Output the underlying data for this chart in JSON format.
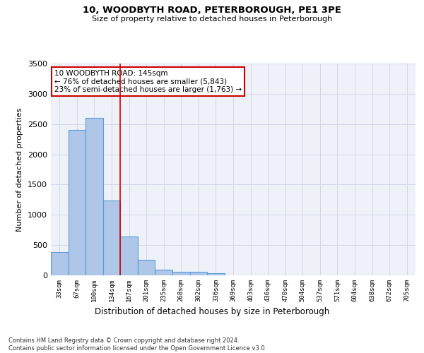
{
  "title1": "10, WOODBYTH ROAD, PETERBOROUGH, PE1 3PE",
  "title2": "Size of property relative to detached houses in Peterborough",
  "xlabel": "Distribution of detached houses by size in Peterborough",
  "ylabel": "Number of detached properties",
  "categories": [
    "33sqm",
    "67sqm",
    "100sqm",
    "134sqm",
    "167sqm",
    "201sqm",
    "235sqm",
    "268sqm",
    "302sqm",
    "336sqm",
    "369sqm",
    "403sqm",
    "436sqm",
    "470sqm",
    "504sqm",
    "537sqm",
    "571sqm",
    "604sqm",
    "638sqm",
    "672sqm",
    "705sqm"
  ],
  "values": [
    390,
    2400,
    2600,
    1240,
    640,
    255,
    90,
    55,
    55,
    40,
    0,
    0,
    0,
    0,
    0,
    0,
    0,
    0,
    0,
    0,
    0
  ],
  "bar_color": "#aec6e8",
  "bar_edge_color": "#5b9bd5",
  "annotation_text": "10 WOODBYTH ROAD: 145sqm\n← 76% of detached houses are smaller (5,843)\n23% of semi-detached houses are larger (1,763) →",
  "annotation_box_color": "#ffffff",
  "annotation_box_edge_color": "#cc0000",
  "vline_color": "#cc0000",
  "vline_x": 3.5,
  "ylim": [
    0,
    3500
  ],
  "yticks": [
    0,
    500,
    1000,
    1500,
    2000,
    2500,
    3000,
    3500
  ],
  "grid_color": "#d0d8e8",
  "background_color": "#eef2f8",
  "footer1": "Contains HM Land Registry data © Crown copyright and database right 2024.",
  "footer2": "Contains public sector information licensed under the Open Government Licence v3.0."
}
